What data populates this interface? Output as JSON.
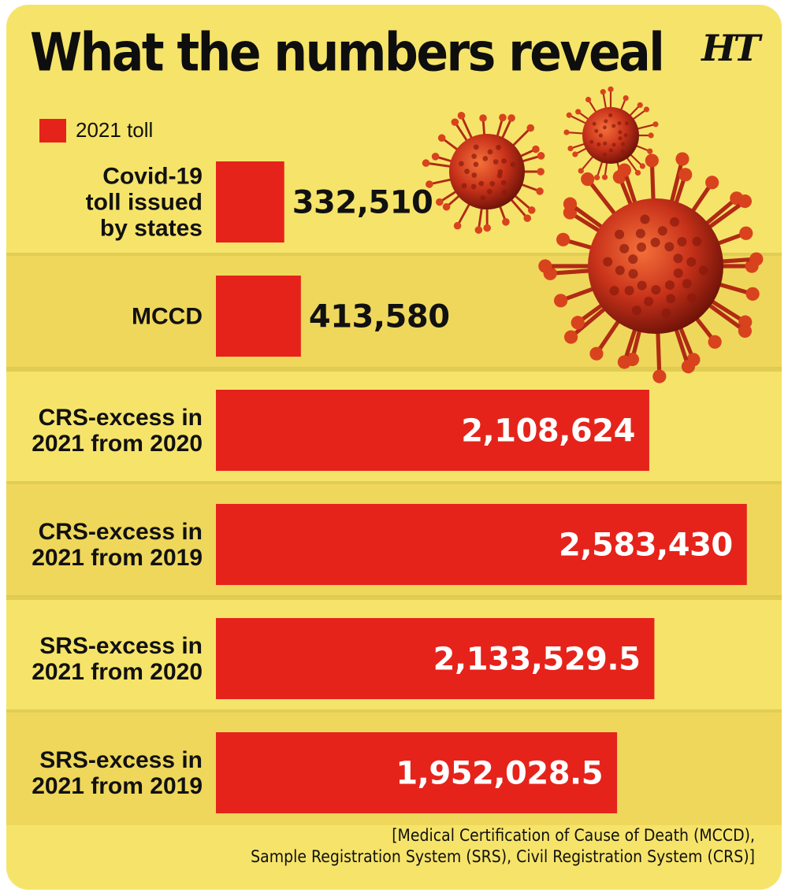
{
  "header": {
    "title": "What the numbers reveal",
    "logo_text": "HT"
  },
  "legend": {
    "label": "2021 toll",
    "color": "#e5231b"
  },
  "chart_data": {
    "type": "bar",
    "orientation": "horizontal",
    "categories": [
      [
        "Covid-19",
        "toll issued",
        "by states"
      ],
      [
        "MCCD"
      ],
      [
        "CRS-excess in",
        "2021 from 2020"
      ],
      [
        "CRS-excess in",
        "2021 from 2019"
      ],
      [
        "SRS-excess in",
        "2021 from 2020"
      ],
      [
        "SRS-excess in",
        "2021 from 2019"
      ]
    ],
    "values": [
      332510,
      413580,
      2108624,
      2583430,
      2133529.5,
      1952028.5
    ],
    "value_labels": [
      "332,510",
      "413,580",
      "2,108,624",
      "2,583,430",
      "2,133,529.5",
      "1,952,028.5"
    ],
    "series": [
      {
        "name": "2021 toll"
      }
    ],
    "bar_color": "#e5231b",
    "grid": false,
    "legend_position": "top-left"
  },
  "footer": {
    "source_lines": [
      "[Medical Certification of Cause of Death (MCCD),",
      "Sample Registration System (SRS), Civil Registration System (CRS)]"
    ]
  }
}
